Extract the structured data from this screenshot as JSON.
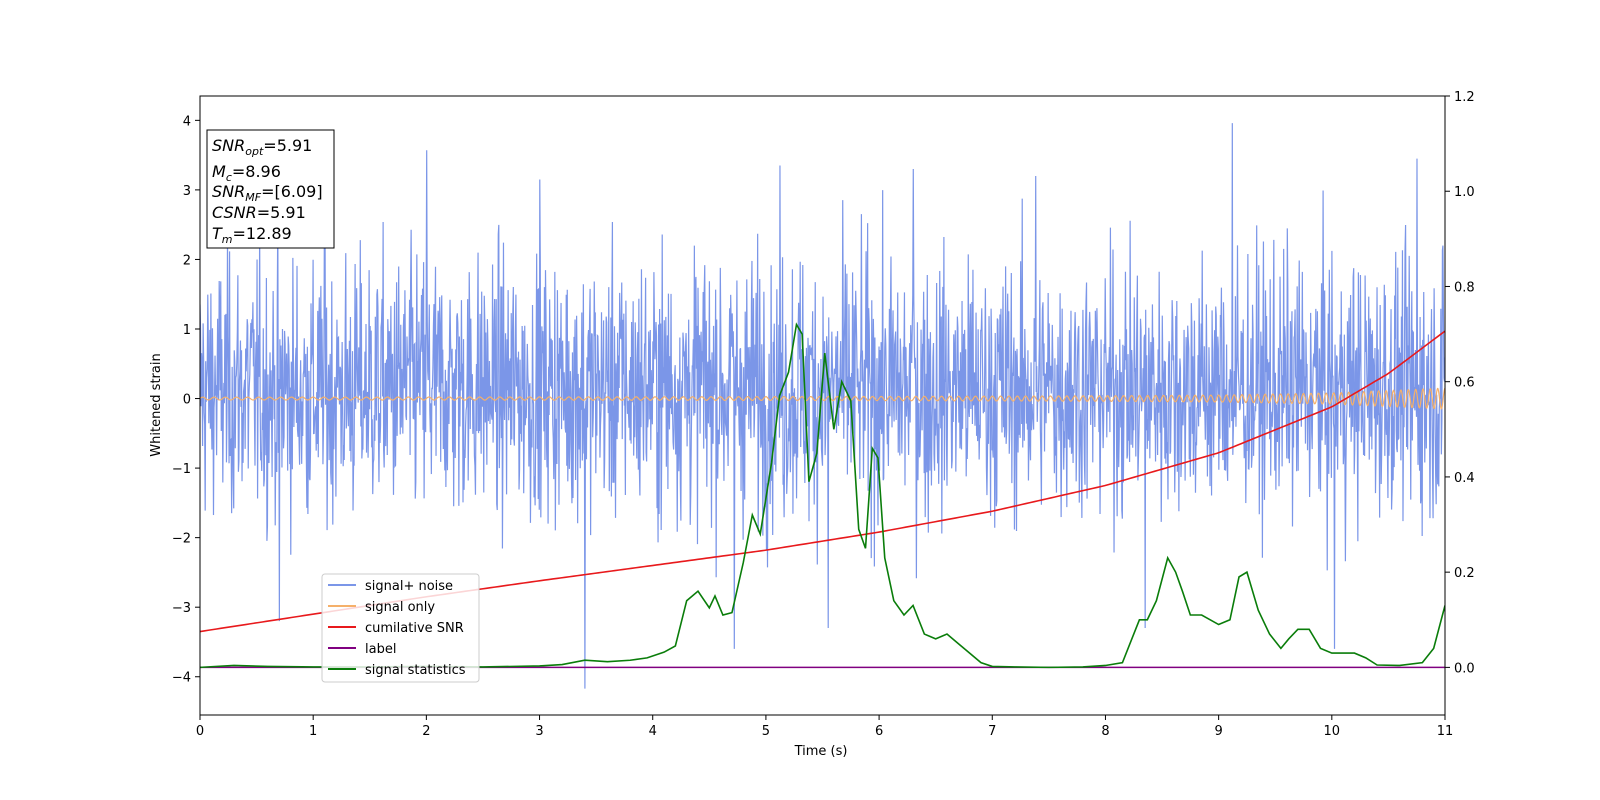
{
  "chart_data": {
    "type": "line",
    "xlabel": "Time (s)",
    "ylabel": "Whitened strain",
    "xlim": [
      0,
      11
    ],
    "ylim": [
      -4.55,
      4.35
    ],
    "y2lim": [
      -0.1,
      1.2
    ],
    "xticks": [
      0,
      1,
      2,
      3,
      4,
      5,
      6,
      7,
      8,
      9,
      10,
      11
    ],
    "yticks": [
      -4,
      -3,
      -2,
      -1,
      0,
      1,
      2,
      3,
      4
    ],
    "y2ticks": [
      "0.0",
      "0.2",
      "0.4",
      "0.6",
      "0.8",
      "1.0",
      "1.2"
    ],
    "legend_position": "lower-left",
    "series": [
      {
        "name": "signal+ noise",
        "axis": "left",
        "color": "#7b96e8",
        "noise_envelope": {
          "x": [
            0,
            1,
            2,
            3,
            4,
            5,
            6,
            7,
            8,
            9,
            10,
            11
          ],
          "typical_max": [
            2.3,
            2.3,
            2.4,
            2.3,
            2.4,
            2.4,
            2.4,
            2.3,
            2.3,
            2.3,
            2.4,
            2.3
          ],
          "typical_min": [
            -2.0,
            -2.1,
            -2.0,
            -2.0,
            -2.0,
            -2.1,
            -2.1,
            -2.0,
            -2.0,
            -2.0,
            -2.1,
            -2.0
          ]
        },
        "spikes": [
          {
            "x": 2.0,
            "y": 3.57
          },
          {
            "x": 1.1,
            "y": 3.1
          },
          {
            "x": 3.0,
            "y": 3.15
          },
          {
            "x": 3.4,
            "y": -4.17
          },
          {
            "x": 5.12,
            "y": 3.35
          },
          {
            "x": 5.55,
            "y": -3.3
          },
          {
            "x": 6.3,
            "y": 3.3
          },
          {
            "x": 7.38,
            "y": 3.2
          },
          {
            "x": 9.12,
            "y": 3.96
          },
          {
            "x": 10.75,
            "y": 3.45
          },
          {
            "x": 10.02,
            "y": -3.6
          },
          {
            "x": 4.72,
            "y": -3.6
          },
          {
            "x": 0.7,
            "y": -3.2
          },
          {
            "x": 8.35,
            "y": -3.3
          }
        ]
      },
      {
        "name": "signal only",
        "axis": "left",
        "color": "#f5b06a",
        "amplitude": {
          "x": [
            0,
            2,
            4,
            6,
            8,
            9,
            10,
            11
          ],
          "y": [
            0.02,
            0.022,
            0.025,
            0.03,
            0.04,
            0.05,
            0.08,
            0.15
          ]
        }
      },
      {
        "name": "cumilative SNR",
        "axis": "left",
        "color": "#e8191c",
        "x": [
          0,
          1,
          2,
          3,
          4,
          5,
          6,
          7,
          8,
          9,
          10,
          10.5,
          11
        ],
        "y": [
          -3.35,
          -3.1,
          -2.85,
          -2.62,
          -2.4,
          -2.18,
          -1.92,
          -1.62,
          -1.25,
          -0.78,
          -0.12,
          0.36,
          0.97
        ]
      },
      {
        "name": "label",
        "axis": "right",
        "color": "#800080",
        "x": [
          0,
          11
        ],
        "y": [
          0.0,
          0.0
        ]
      },
      {
        "name": "signal statistics",
        "axis": "right",
        "color": "#0a7d0a",
        "x": [
          0,
          0.3,
          0.6,
          1,
          1.5,
          2,
          2.5,
          3,
          3.2,
          3.4,
          3.6,
          3.8,
          3.95,
          4.1,
          4.2,
          4.3,
          4.4,
          4.5,
          4.55,
          4.62,
          4.7,
          4.8,
          4.88,
          4.95,
          5.05,
          5.12,
          5.2,
          5.27,
          5.32,
          5.38,
          5.45,
          5.52,
          5.6,
          5.67,
          5.75,
          5.82,
          5.88,
          5.94,
          5.99,
          6.05,
          6.13,
          6.22,
          6.3,
          6.4,
          6.5,
          6.6,
          6.7,
          6.8,
          6.9,
          7.0,
          7.2,
          7.5,
          7.8,
          8.0,
          8.15,
          8.25,
          8.3,
          8.37,
          8.45,
          8.55,
          8.62,
          8.68,
          8.75,
          8.85,
          9.0,
          9.1,
          9.18,
          9.25,
          9.35,
          9.45,
          9.55,
          9.62,
          9.7,
          9.8,
          9.9,
          10.0,
          10.1,
          10.2,
          10.3,
          10.4,
          10.6,
          10.8,
          10.9,
          11.0
        ],
        "y": [
          0.0,
          0.004,
          0.002,
          0.001,
          0.001,
          0.002,
          0.001,
          0.003,
          0.006,
          0.015,
          0.012,
          0.015,
          0.02,
          0.032,
          0.045,
          0.14,
          0.16,
          0.125,
          0.15,
          0.11,
          0.115,
          0.22,
          0.32,
          0.28,
          0.43,
          0.57,
          0.62,
          0.72,
          0.7,
          0.39,
          0.45,
          0.66,
          0.5,
          0.6,
          0.56,
          0.29,
          0.25,
          0.46,
          0.44,
          0.23,
          0.14,
          0.11,
          0.13,
          0.07,
          0.06,
          0.07,
          0.05,
          0.03,
          0.01,
          0.002,
          0.001,
          0.0,
          0.001,
          0.004,
          0.01,
          0.07,
          0.1,
          0.1,
          0.14,
          0.23,
          0.2,
          0.16,
          0.11,
          0.11,
          0.09,
          0.1,
          0.19,
          0.2,
          0.12,
          0.07,
          0.04,
          0.06,
          0.08,
          0.08,
          0.04,
          0.03,
          0.03,
          0.03,
          0.02,
          0.005,
          0.004,
          0.01,
          0.04,
          0.13
        ]
      }
    ],
    "annotation": {
      "lines": [
        {
          "label": "SNR",
          "sub": "opt",
          "value": "=5.91"
        },
        {
          "label": "M",
          "sub": "c",
          "value": "=8.96"
        },
        {
          "label": "SNR",
          "sub": "MF",
          "value": "=[6.09]"
        },
        {
          "label": "CSNR",
          "sub": "",
          "value": "=5.91"
        },
        {
          "label": "T",
          "sub": "m",
          "value": "=12.89"
        }
      ]
    }
  }
}
